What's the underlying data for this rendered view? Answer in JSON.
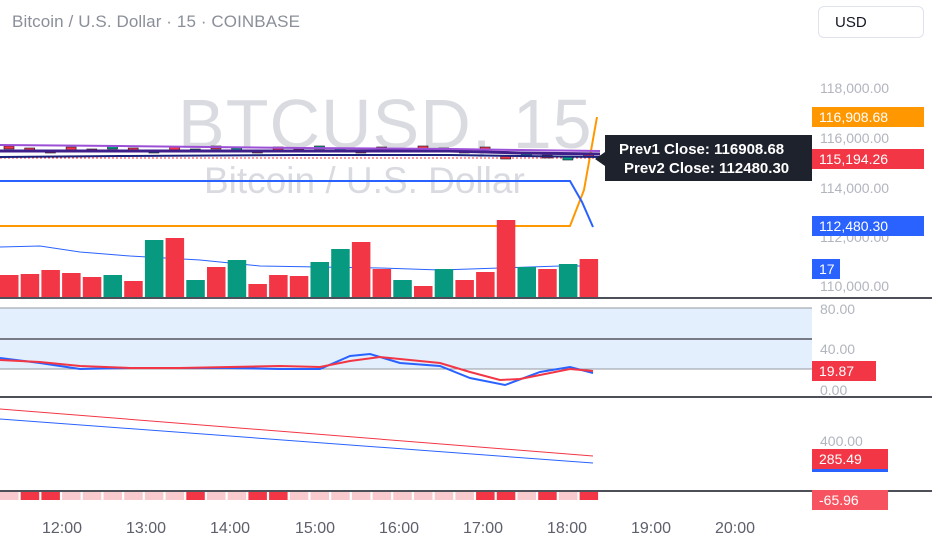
{
  "header": {
    "symbol_title": "Bitcoin / U.S. Dollar · 15 · COINBASE",
    "currency": "USD"
  },
  "watermark": {
    "main": "BTCUSD, 15",
    "sub": "Bitcoin / U.S. Dollar"
  },
  "price_axis": {
    "labels": [
      "118,000.00",
      "116,000.00",
      "114,000.00",
      "112,000.00",
      "110,000.00"
    ]
  },
  "price_tags": [
    {
      "text": "116,908.68",
      "color": "#ff9800",
      "text_color": "#ffffff"
    },
    {
      "text": "115,194.26",
      "color": "#f23645",
      "text_color": "#ffffff"
    },
    {
      "text": "112,480.30",
      "color": "#2962ff",
      "text_color": "#ffffff"
    },
    {
      "text": "17",
      "color": "#2962ff",
      "text_color": "#ffffff"
    }
  ],
  "tooltip": {
    "line1": "Prev1 Close: 116908.68",
    "line2": "Prev2 Close: 112480.30"
  },
  "rsi_pane": {
    "labels": [
      "80.00",
      "40.00",
      "0.00"
    ],
    "value_tag": "19.87",
    "value_color": "#f23645"
  },
  "lower_pane": {
    "labels": [
      "400.00"
    ],
    "value_tag": "285.49",
    "value_color": "#f23645",
    "second_tag_color": "#2962ff"
  },
  "hist_pane": {
    "value_tag": "-65.96",
    "value_color": "#f7525f"
  },
  "time_axis": {
    "labels": [
      "12:00",
      "13:00",
      "14:00",
      "15:00",
      "16:00",
      "17:00",
      "18:00",
      "19:00",
      "20:00"
    ]
  },
  "colors": {
    "up": "#089981",
    "down": "#f23645",
    "orange_line": "#ff9800",
    "blue_line": "#2962ff",
    "purple_ma": "#5b2aa0"
  },
  "chart_data": {
    "type": "bar",
    "volume_bars": [
      {
        "dir": "down",
        "height": 22
      },
      {
        "dir": "down",
        "height": 23
      },
      {
        "dir": "down",
        "height": 27
      },
      {
        "dir": "down",
        "height": 24
      },
      {
        "dir": "down",
        "height": 20
      },
      {
        "dir": "up",
        "height": 22
      },
      {
        "dir": "down",
        "height": 16
      },
      {
        "dir": "up",
        "height": 57
      },
      {
        "dir": "down",
        "height": 59
      },
      {
        "dir": "up",
        "height": 17
      },
      {
        "dir": "down",
        "height": 30
      },
      {
        "dir": "up",
        "height": 37
      },
      {
        "dir": "down",
        "height": 13
      },
      {
        "dir": "down",
        "height": 22
      },
      {
        "dir": "down",
        "height": 21
      },
      {
        "dir": "up",
        "height": 35
      },
      {
        "dir": "up",
        "height": 48
      },
      {
        "dir": "down",
        "height": 55
      },
      {
        "dir": "down",
        "height": 28
      },
      {
        "dir": "up",
        "height": 17
      },
      {
        "dir": "down",
        "height": 11
      },
      {
        "dir": "up",
        "height": 28
      },
      {
        "dir": "down",
        "height": 17
      },
      {
        "dir": "down",
        "height": 25
      },
      {
        "dir": "down",
        "height": 77
      },
      {
        "dir": "up",
        "height": 30
      },
      {
        "dir": "down",
        "height": 28
      },
      {
        "dir": "up",
        "height": 33
      },
      {
        "dir": "down",
        "height": 38
      }
    ]
  }
}
